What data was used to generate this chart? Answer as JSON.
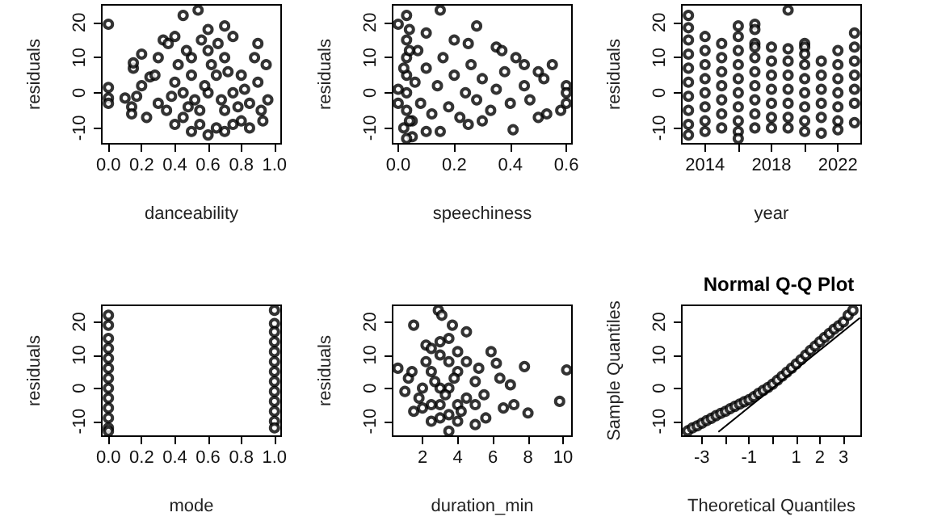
{
  "chart_data": [
    {
      "type": "scatter",
      "xlabel": "danceability",
      "ylabel": "residuals",
      "marker": "circle",
      "color": "#000000",
      "xlim": [
        -0.04,
        1.04
      ],
      "xticks": [
        {
          "value": 0,
          "label": "0.0"
        },
        0.2,
        0.4,
        0.6,
        0.8,
        {
          "value": 1,
          "label": "1.0"
        }
      ],
      "ylim": [
        -14.5,
        25
      ],
      "yticks": [
        -10,
        0,
        10,
        20
      ],
      "x": [
        0,
        0,
        0,
        0,
        0.1,
        0.14,
        0.14,
        0.15,
        0.15,
        0.2,
        0.17,
        0.2,
        0.23,
        0.25,
        0.28,
        0.3,
        0.33,
        0.36,
        0.4,
        0.45,
        0.54,
        0.6,
        0.7,
        0.75,
        0.9,
        0.95,
        0.96,
        0.93,
        0.85,
        0.7,
        0.6,
        0.5,
        0.4,
        0.35,
        0.3,
        0.45,
        0.5,
        0.55,
        0.6,
        0.65,
        0.7,
        0.75,
        0.8,
        0.85,
        0.5,
        0.6,
        0.7,
        0.8,
        0.55,
        0.65,
        0.75,
        0.45,
        0.4,
        0.42,
        0.9,
        0.88,
        0.62,
        0.58,
        0.68,
        0.72,
        0.52,
        0.48,
        0.78,
        0.82,
        0.66,
        0.56,
        0.47,
        0.38,
        0.92
      ],
      "values": [
        19.5,
        1.5,
        -1.5,
        -3,
        -1.5,
        -4,
        -6,
        7,
        8.5,
        11,
        -1,
        2,
        -7,
        4.5,
        5,
        10,
        15,
        14,
        16,
        22,
        23.5,
        18,
        19,
        16,
        14,
        8,
        -2,
        -8,
        -10,
        -11,
        -12,
        -11,
        -9,
        -5,
        -3,
        0,
        5,
        -5,
        0,
        5,
        -5,
        0,
        5,
        -3,
        10,
        12,
        10,
        -8,
        -9,
        -10,
        -9,
        -7,
        3,
        8,
        3,
        10,
        8,
        2,
        -2,
        6,
        -2,
        -4,
        -4,
        1,
        14,
        15,
        12,
        -1,
        -5
      ]
    },
    {
      "type": "scatter",
      "xlabel": "speechiness",
      "ylabel": "residuals",
      "marker": "circle",
      "color": "#000000",
      "xlim": [
        -0.02,
        0.62
      ],
      "xticks": [
        {
          "value": 0,
          "label": "0.0"
        },
        0.2,
        0.4,
        0.6
      ],
      "ylim": [
        -14.5,
        25
      ],
      "yticks": [
        -10,
        0,
        10,
        20
      ],
      "x": [
        0,
        0.03,
        0.15,
        0.1,
        0.2,
        0.25,
        0.28,
        0.35,
        0.37,
        0.42,
        0.45,
        0.5,
        0.55,
        0.52,
        0.45,
        0.47,
        0.5,
        0.53,
        0.58,
        0.6,
        0.6,
        0.6,
        0.41,
        0.3,
        0.25,
        0.15,
        0.1,
        0.05,
        0.03,
        0.02,
        0.03,
        0.03,
        0.03,
        0.03,
        0.03,
        0.04,
        0.05,
        0.06,
        0.07,
        0.08,
        0.1,
        0.12,
        0.14,
        0.16,
        0.18,
        0.2,
        0.22,
        0.24,
        0.26,
        0.28,
        0.3,
        0.33,
        0.35,
        0.38,
        0.4,
        0,
        0,
        0.04,
        0.04,
        0.02
      ],
      "values": [
        19.5,
        22,
        23.5,
        17,
        15,
        14,
        19,
        13,
        12,
        10,
        8,
        6,
        8,
        4,
        2,
        -2,
        -7,
        -6,
        -5,
        2,
        -3,
        0,
        -10.5,
        -8,
        -9,
        -11,
        -11,
        -12.5,
        -13,
        -10,
        -5,
        0,
        5,
        10,
        15,
        18,
        -8,
        3,
        12,
        -3,
        7,
        -6,
        2,
        10,
        -4,
        5,
        -7,
        0,
        8,
        -2,
        4,
        -5,
        1,
        6,
        -3,
        1,
        -3,
        12,
        -8,
        7
      ]
    },
    {
      "type": "scatter",
      "xlabel": "year",
      "ylabel": "residuals",
      "marker": "circle",
      "color": "#000000",
      "xlim": [
        2012.6,
        2023.4
      ],
      "xticks": [
        2014,
        {
          "value": 2016,
          "label": null
        },
        2018,
        {
          "value": 2020,
          "label": null
        },
        2022
      ],
      "ylim": [
        -14.5,
        25
      ],
      "yticks": [
        -10,
        0,
        10,
        20
      ],
      "x": [
        2013,
        2013,
        2013,
        2013,
        2013,
        2013,
        2013,
        2013,
        2013,
        2013,
        2014,
        2014,
        2014,
        2014,
        2014,
        2014,
        2014,
        2014,
        2015,
        2015,
        2015,
        2015,
        2015,
        2015,
        2015,
        2016,
        2016,
        2016,
        2016,
        2016,
        2016,
        2016,
        2016,
        2016,
        2016,
        2017,
        2017,
        2017,
        2017,
        2017,
        2017,
        2017,
        2017,
        2017,
        2017,
        2018,
        2018,
        2018,
        2018,
        2018,
        2018,
        2018,
        2019,
        2019,
        2019,
        2019,
        2019,
        2019,
        2019,
        2019,
        2020,
        2020,
        2020,
        2020,
        2020,
        2020,
        2020,
        2020,
        2020,
        2021,
        2021,
        2021,
        2021,
        2021,
        2021,
        2022,
        2022,
        2022,
        2022,
        2022,
        2022,
        2022,
        2023,
        2023,
        2023,
        2023,
        2023,
        2023,
        2023
      ],
      "values": [
        22,
        18.5,
        15,
        11,
        7,
        3,
        -1,
        -5,
        -9,
        -12,
        16,
        12,
        8,
        4,
        0,
        -4,
        -8,
        -11,
        14,
        10,
        6,
        2,
        -2,
        -6,
        -10,
        19,
        16,
        12,
        8,
        4,
        0,
        -4,
        -8,
        -11,
        -13,
        19.5,
        18,
        14,
        13,
        10,
        6,
        2,
        -2,
        -6,
        -10,
        13,
        9,
        5,
        1,
        -3,
        -7,
        -10,
        23.5,
        12.5,
        9,
        5,
        1,
        -3,
        -7,
        -10,
        14,
        13,
        11,
        8,
        4,
        0,
        -4,
        -8,
        -11,
        9,
        5,
        1,
        -3,
        -7,
        -11.5,
        12,
        8,
        4,
        0,
        -4,
        -8,
        -10.5,
        17,
        13,
        9,
        5,
        1,
        -3,
        -8.5
      ]
    },
    {
      "type": "scatter",
      "xlabel": "mode",
      "ylabel": "residuals",
      "marker": "circle",
      "color": "#000000",
      "xlim": [
        -0.04,
        1.04
      ],
      "xticks": [
        {
          "value": 0,
          "label": "0.0"
        },
        0.2,
        0.4,
        0.6,
        0.8,
        {
          "value": 1,
          "label": "1.0"
        }
      ],
      "ylim": [
        -14.5,
        25
      ],
      "yticks": [
        -10,
        0,
        10,
        20
      ],
      "x": [
        0,
        0,
        0,
        0,
        0,
        0,
        0,
        0,
        0,
        0,
        0,
        0,
        0,
        1,
        1,
        1,
        1,
        1,
        1,
        1,
        1,
        1,
        1,
        1,
        1,
        1
      ],
      "values": [
        22,
        19,
        15,
        12,
        9,
        6,
        3,
        0,
        -3,
        -6,
        -9,
        -12,
        -13,
        23.5,
        19.5,
        17,
        14,
        11,
        8,
        5,
        2,
        -1,
        -4,
        -7,
        -10,
        -12
      ]
    },
    {
      "type": "scatter",
      "xlabel": "duration_min",
      "ylabel": "residuals",
      "marker": "circle",
      "color": "#000000",
      "xlim": [
        0.3,
        10.5
      ],
      "xticks": [
        2,
        4,
        6,
        8,
        10
      ],
      "ylim": [
        -14.5,
        25
      ],
      "yticks": [
        -10,
        0,
        10,
        20
      ],
      "x": [
        0.6,
        1.5,
        2.2,
        2.9,
        3.1,
        3.7,
        4.5,
        5.9,
        6.2,
        6.4,
        7.8,
        7.0,
        7.2,
        8,
        9.8,
        10.2,
        6.6,
        5.6,
        5,
        3.5,
        2.5,
        1.5,
        1,
        1.2,
        1.4,
        2,
        2.5,
        3,
        3.5,
        3,
        3.5,
        4,
        4,
        2.5,
        3,
        3.5,
        2.5,
        4.5,
        4.5,
        5,
        5,
        5.5,
        2,
        3,
        4,
        3.5,
        4,
        3,
        2.7,
        3.3,
        3.8,
        4.2,
        2.2,
        1.8,
        5.2
      ],
      "values": [
        6,
        19,
        13,
        23.5,
        22,
        19,
        17,
        11,
        7.5,
        3,
        6.5,
        1,
        -5,
        -7.5,
        -4,
        5.5,
        -6,
        -9,
        -11,
        -13,
        -10,
        -7,
        -1,
        3,
        5,
        0,
        5,
        10,
        15,
        -5,
        0,
        5,
        -5,
        -5,
        0,
        8,
        12,
        -3,
        8,
        2,
        -5,
        -2,
        -6,
        -9,
        -10,
        -8,
        11,
        14,
        2,
        -2,
        3,
        -7,
        8,
        -3,
        6
      ]
    },
    {
      "type": "scatter",
      "title": "Normal Q-Q Plot",
      "xlabel": "Theoretical Quantiles",
      "ylabel": "Sample Quantiles",
      "xlim": [
        -3.85,
        3.75
      ],
      "xticks": [
        -3,
        {
          "value": -2,
          "label": null
        },
        -1,
        {
          "value": 0,
          "label": null
        },
        1,
        2,
        3
      ],
      "ylim": [
        -14.5,
        25
      ],
      "yticks": [
        -10,
        0,
        10,
        20
      ],
      "series": [
        {
          "color": "#000000",
          "marker": "circle",
          "x": [
            -3.6,
            -3.4,
            -3.2,
            -3.0,
            -2.8,
            -2.6,
            -2.4,
            -2.2,
            -2.0,
            -1.8,
            -1.6,
            -1.4,
            -1.2,
            -1.0,
            -0.8,
            -0.6,
            -0.4,
            -0.2,
            0,
            0.2,
            0.4,
            0.6,
            0.8,
            1.0,
            1.2,
            1.4,
            1.6,
            1.8,
            2.0,
            2.2,
            2.4,
            2.6,
            2.8,
            3.0,
            3.2,
            3.4
          ],
          "values": [
            -12.9,
            -12,
            -11.4,
            -10.6,
            -9.8,
            -9.1,
            -8.3,
            -7.6,
            -7.0,
            -6.2,
            -5.5,
            -4.8,
            -4.1,
            -3.5,
            -2.6,
            -1.6,
            -0.7,
            0.2,
            1.2,
            2.4,
            3.6,
            4.8,
            6.0,
            7.3,
            8.6,
            10,
            11.4,
            12.7,
            14,
            15.3,
            16.5,
            17.8,
            18.8,
            20,
            22,
            23.5
          ]
        },
        {
          "type": "line",
          "marker": "none",
          "color": "#000000",
          "x": [
            -2.3,
            3.7
          ],
          "values": [
            -13.2,
            21.2
          ]
        }
      ]
    }
  ]
}
